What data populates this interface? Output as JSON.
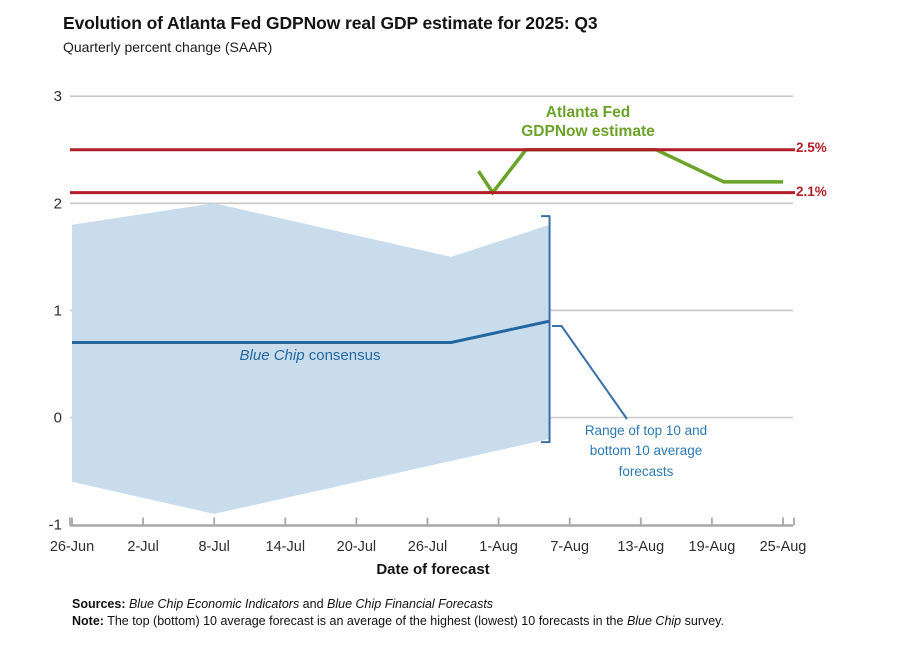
{
  "header": {
    "title": "Evolution of Atlanta Fed GDPNow real GDP estimate for 2025: Q3",
    "subtitle": "Quarterly percent change (SAAR)"
  },
  "chart_data": {
    "type": "line",
    "title": "Evolution of Atlanta Fed GDPNow real GDP estimate for 2025: Q3",
    "subtitle": "Quarterly percent change (SAAR)",
    "xlabel": "Date of forecast",
    "ylabel": "Quarterly percent change (SAAR)",
    "ylim": [
      -1,
      3
    ],
    "grid": true,
    "y_ticks": [
      {
        "label": "3",
        "value": 3
      },
      {
        "label": "2",
        "value": 2
      },
      {
        "label": "1",
        "value": 1
      },
      {
        "label": "0",
        "value": 0
      },
      {
        "label": "-1",
        "value": -1
      }
    ],
    "x_ticks": [
      {
        "label": "26-Jun",
        "day": 0
      },
      {
        "label": "2-Jul",
        "day": 6
      },
      {
        "label": "8-Jul",
        "day": 12
      },
      {
        "label": "14-Jul",
        "day": 18
      },
      {
        "label": "20-Jul",
        "day": 24
      },
      {
        "label": "26-Jul",
        "day": 30
      },
      {
        "label": "1-Aug",
        "day": 36
      },
      {
        "label": "7-Aug",
        "day": 42
      },
      {
        "label": "13-Aug",
        "day": 48
      },
      {
        "label": "19-Aug",
        "day": 54
      },
      {
        "label": "25-Aug",
        "day": 60
      }
    ],
    "series": [
      {
        "name": "Atlanta Fed GDPNow estimate",
        "color": "#6ba32a",
        "points": [
          {
            "date": "30-Jul",
            "day": 34.3,
            "value": 2.3
          },
          {
            "date": "1-Aug",
            "day": 35.5,
            "value": 2.1
          },
          {
            "date": "4-Aug",
            "day": 38.3,
            "value": 2.5
          },
          {
            "date": "14-Aug",
            "day": 49.3,
            "value": 2.5
          },
          {
            "date": "20-Aug",
            "day": 55,
            "value": 2.2
          },
          {
            "date": "25-Aug",
            "day": 60,
            "value": 2.2
          }
        ]
      },
      {
        "name": "Blue Chip consensus",
        "color": "#24689f",
        "points": [
          {
            "date": "26-Jun",
            "day": 0,
            "value": 0.7
          },
          {
            "date": "28-Jul",
            "day": 32,
            "value": 0.7
          },
          {
            "date": "5-Aug",
            "day": 40.3,
            "value": 0.9
          }
        ]
      }
    ],
    "band": {
      "name": "Range of top 10 and bottom 10 average forecasts",
      "fill": "#c9dcec",
      "top": [
        {
          "date": "26-Jun",
          "day": 0,
          "value": 1.8
        },
        {
          "date": "8-Jul",
          "day": 12,
          "value": 2.0
        },
        {
          "date": "28-Jul",
          "day": 32,
          "value": 1.5
        },
        {
          "date": "5-Aug",
          "day": 40.3,
          "value": 1.8
        }
      ],
      "bottom": [
        {
          "date": "26-Jun",
          "day": 0,
          "value": -0.6
        },
        {
          "date": "8-Jul",
          "day": 12,
          "value": -0.9
        },
        {
          "date": "5-Aug",
          "day": 40.3,
          "value": -0.2
        }
      ]
    },
    "reference_lines": [
      {
        "label": "2.5%",
        "value": 2.5,
        "color": "#b21e28"
      },
      {
        "label": "2.1%",
        "value": 2.1,
        "color": "#b21e28"
      }
    ],
    "legend_position": "annotations-on-chart"
  },
  "colors": {
    "gdpnow_green": "#6ba32a",
    "consensus_blue": "#24689f",
    "band_fill": "#c9dcec",
    "reference_red": "#b21e28",
    "grid": "#c9c9c9",
    "axis": "#a8a8a8",
    "annotation_blue": "#2e79b4",
    "bracket_blue": "#3a6fa8",
    "tick_text": "#2e2e2e"
  },
  "annotations": {
    "gdpnow_label": "Atlanta Fed\nGDPNow estimate",
    "consensus_label_italic": "Blue Chip",
    "consensus_label_rest": " consensus",
    "range_label": "Range of top 10 and\nbottom 10 average\nforecasts"
  },
  "footer": {
    "sources_prefix": "Sources:",
    "sources_italic1": " Blue Chip Economic Indicators",
    "sources_mid": " and ",
    "sources_italic2": "Blue Chip Financial Forecasts",
    "note_prefix": "Note:",
    "note_text1": " The top (bottom) 10 average forecast is an average of the highest (lowest) 10 forecasts in the ",
    "note_italic": "Blue Chip",
    "note_text2": " survey."
  }
}
